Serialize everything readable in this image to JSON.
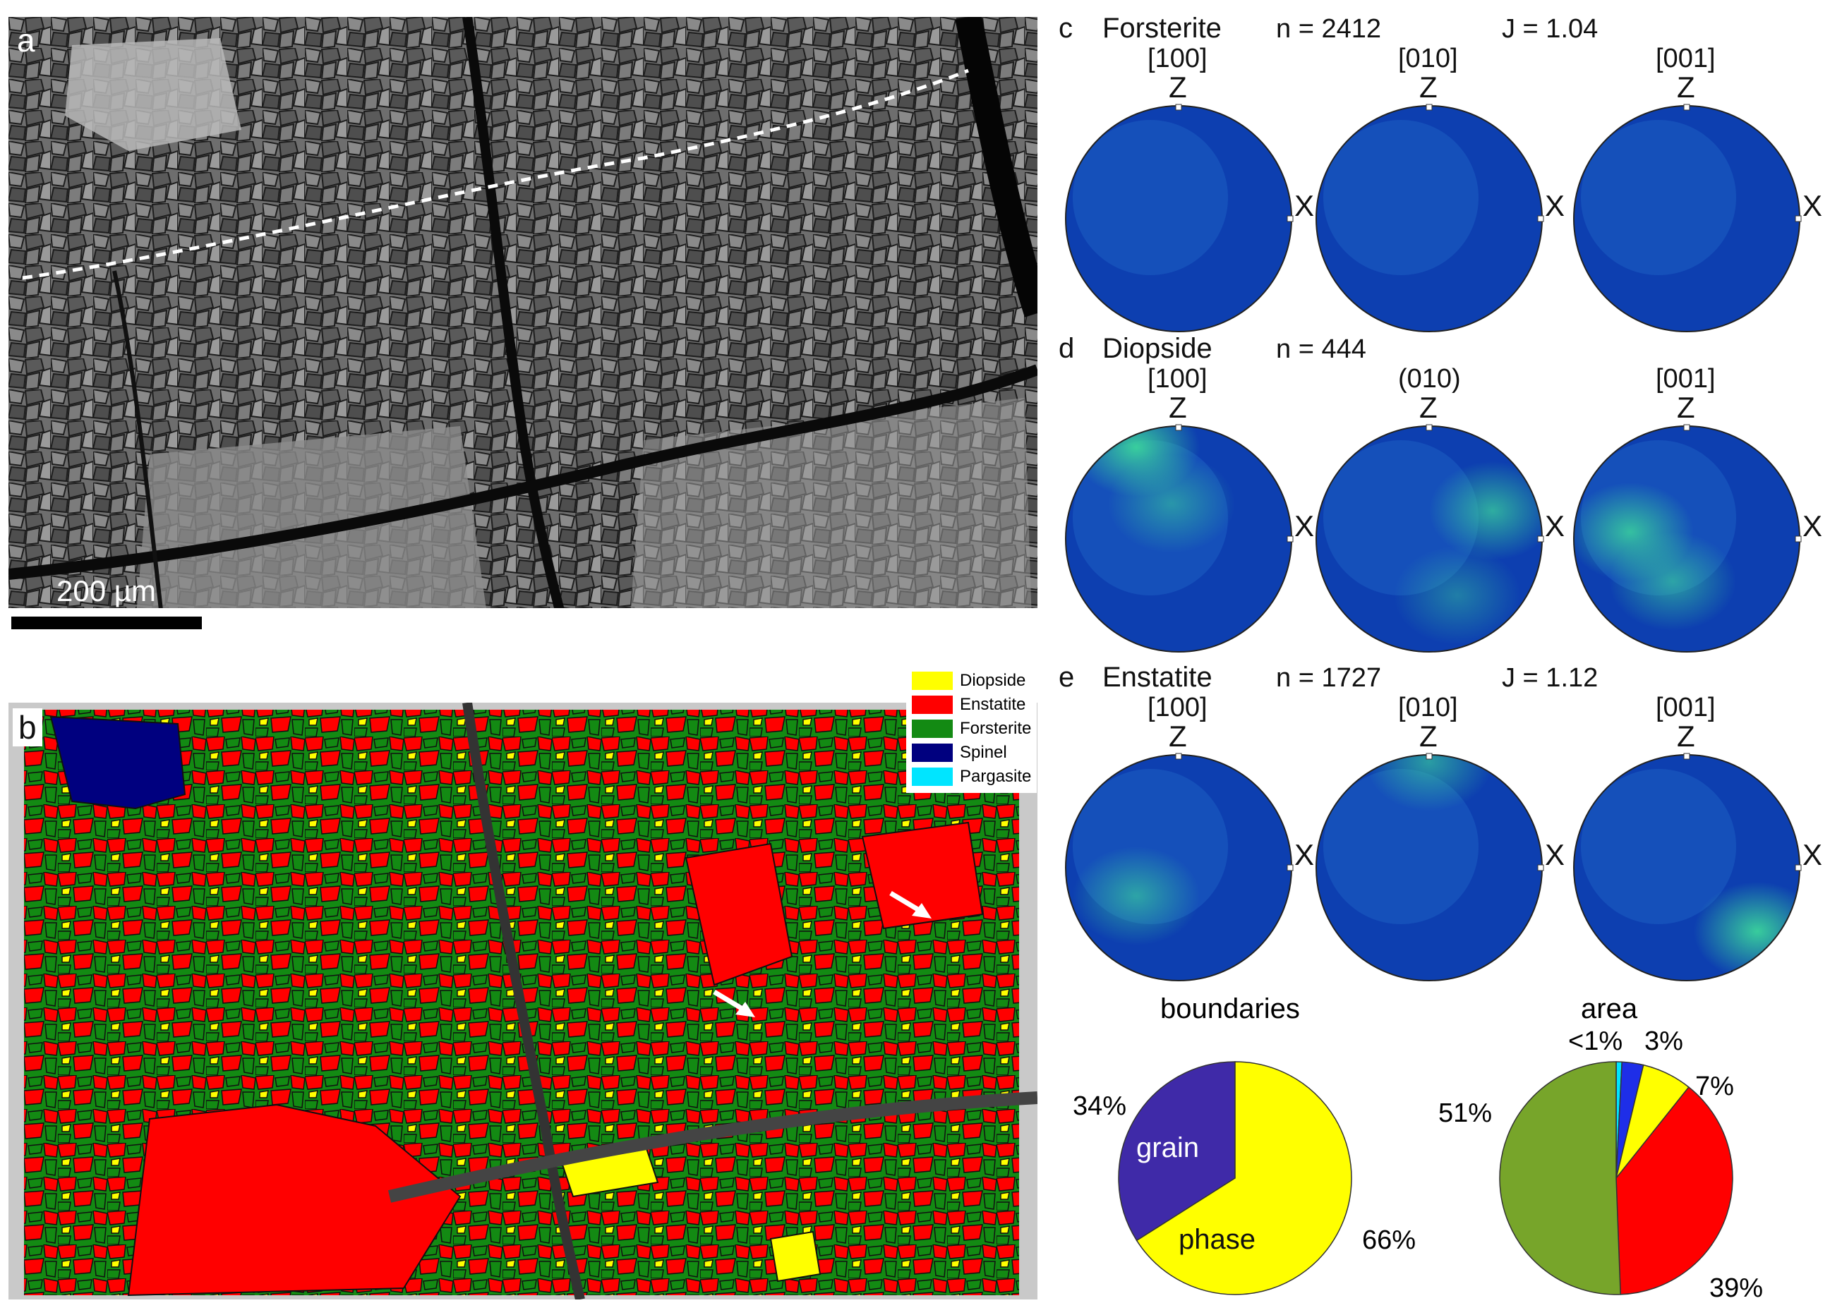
{
  "panel_a": {
    "label": "a",
    "scale_bar": "200 µm"
  },
  "panel_b": {
    "label": "b",
    "legend": [
      {
        "name": "Diopside",
        "color": "#ffff00"
      },
      {
        "name": "Enstatite",
        "color": "#ff0000"
      },
      {
        "name": "Forsterite",
        "color": "#138a13"
      },
      {
        "name": "Spinel",
        "color": "#00007f"
      },
      {
        "name": "Pargasite",
        "color": "#00e5ff"
      }
    ]
  },
  "pole_figures": [
    {
      "label": "c",
      "mineral": "Forsterite",
      "n": "n = 2412",
      "j": "J = 1.04",
      "axes": [
        "[100]",
        "[010]",
        "[001]"
      ]
    },
    {
      "label": "d",
      "mineral": "Diopside",
      "n": "n = 444",
      "j": "",
      "axes": [
        "[100]",
        "(010)",
        "[001]"
      ]
    },
    {
      "label": "e",
      "mineral": "Enstatite",
      "n": "n = 1727",
      "j": "J = 1.12",
      "axes": [
        "[100]",
        "[010]",
        "[001]"
      ]
    }
  ],
  "pole_axis_labels": {
    "z": "Z",
    "x": "X"
  },
  "colors": {
    "pole_base": "#0d3fb0",
    "pole_high": "#3ddc9a",
    "background": "#ffffff"
  },
  "pies": {
    "boundaries": {
      "title": "boundaries",
      "slices": [
        {
          "label": "grain",
          "percent_text": "34%",
          "value": 34,
          "color": "#3f2aa8"
        },
        {
          "label": "phase",
          "percent_text": "66%",
          "value": 66,
          "color": "#ffff00"
        }
      ]
    },
    "area": {
      "title": "area",
      "slices": [
        {
          "label": "",
          "percent_text": "<1%",
          "value": 0.8,
          "color": "#00e5ff"
        },
        {
          "label": "",
          "percent_text": "3%",
          "value": 3,
          "color": "#1e2ee8"
        },
        {
          "label": "",
          "percent_text": "7%",
          "value": 7,
          "color": "#ffff00"
        },
        {
          "label": "",
          "percent_text": "39%",
          "value": 39,
          "color": "#ff0000"
        },
        {
          "label": "",
          "percent_text": "51%",
          "value": 51,
          "color": "#77a52a"
        }
      ]
    }
  }
}
